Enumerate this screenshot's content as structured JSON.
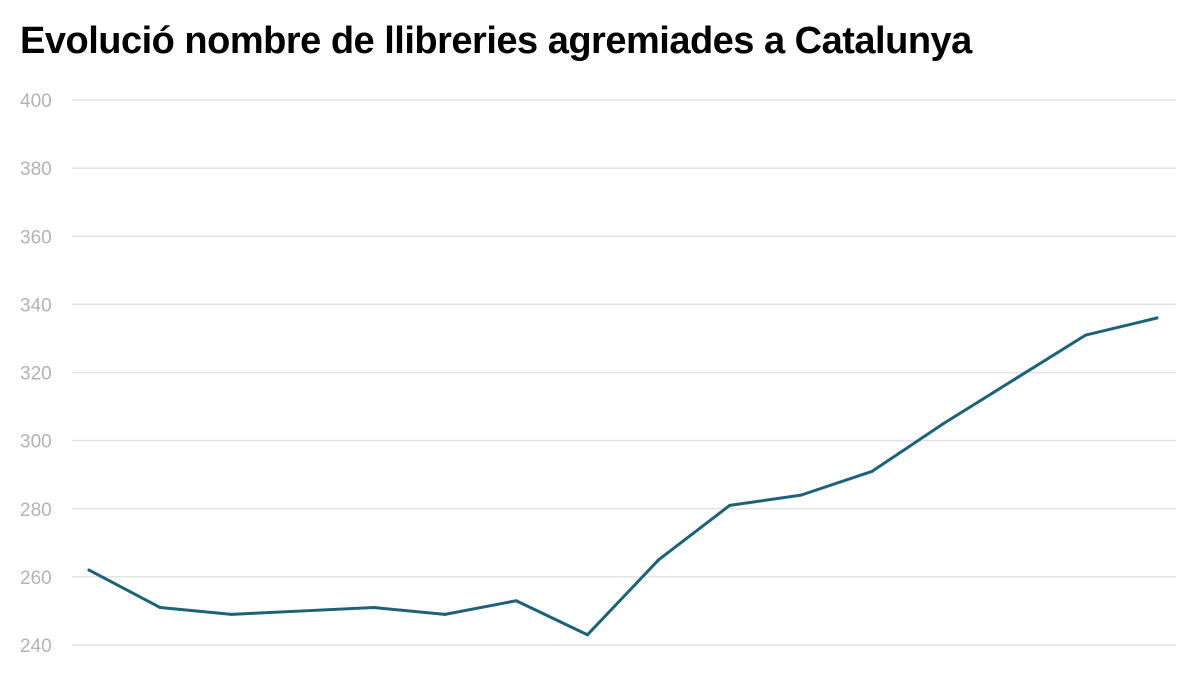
{
  "chart_data": {
    "type": "line",
    "title": "Evolució nombre de llibreries agremiades a Catalunya",
    "xlabel": "",
    "ylabel": "",
    "ylim": [
      240,
      400
    ],
    "yticks": [
      "240",
      "260",
      "280",
      "300",
      "320",
      "340",
      "360",
      "380",
      "400"
    ],
    "grid": true,
    "color": "#1d6278",
    "x": [
      1,
      2,
      3,
      4,
      5,
      6,
      7,
      8,
      9,
      10,
      11,
      12,
      13,
      14,
      15,
      16
    ],
    "values": [
      262,
      251,
      249,
      250,
      251,
      249,
      253,
      243,
      265,
      281,
      284,
      291,
      305,
      318,
      331,
      336
    ]
  }
}
